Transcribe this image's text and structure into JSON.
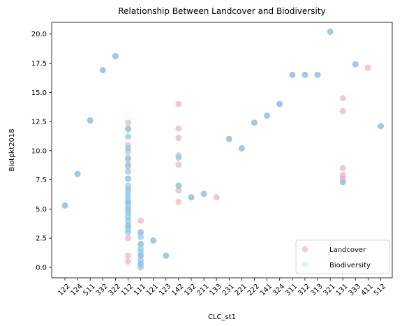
{
  "chart_data": {
    "type": "scatter",
    "title": "Relationship Between Landcover and Biodiversity",
    "xlabel": "CLC_st1",
    "ylabel": "Biotpkt2018",
    "categories": [
      "122",
      "124",
      "511",
      "332",
      "322",
      "112",
      "111",
      "121",
      "123",
      "142",
      "132",
      "211",
      "133",
      "231",
      "221",
      "222",
      "141",
      "324",
      "311",
      "312",
      "313",
      "321",
      "131",
      "333",
      "411",
      "512"
    ],
    "ylim": [
      -0.9,
      21.0
    ],
    "yticks": [
      "0.0",
      "2.5",
      "5.0",
      "7.5",
      "10.0",
      "12.5",
      "15.0",
      "17.5",
      "20.0"
    ],
    "ytick_values": [
      0,
      2.5,
      5,
      7.5,
      10,
      12.5,
      15,
      17.5,
      20
    ],
    "legend_position": "lower-right",
    "series": [
      {
        "name": "Landcover",
        "color": "#d98a9a",
        "points": [
          [
            "122",
            5.3
          ],
          [
            "124",
            8.0
          ],
          [
            "511",
            12.6
          ],
          [
            "332",
            16.9
          ],
          [
            "322",
            18.1
          ],
          [
            "112",
            12.4
          ],
          [
            "112",
            11.8
          ],
          [
            "112",
            10.5
          ],
          [
            "112",
            9.9
          ],
          [
            "112",
            9.2
          ],
          [
            "112",
            8.6
          ],
          [
            "112",
            7.6
          ],
          [
            "112",
            6.5
          ],
          [
            "112",
            5.6
          ],
          [
            "112",
            4.9
          ],
          [
            "112",
            3.6
          ],
          [
            "112",
            2.5
          ],
          [
            "112",
            1.0
          ],
          [
            "112",
            0.5
          ],
          [
            "111",
            4.0
          ],
          [
            "111",
            3.0
          ],
          [
            "111",
            2.0
          ],
          [
            "111",
            1.0
          ],
          [
            "111",
            0.3
          ],
          [
            "121",
            2.3
          ],
          [
            "123",
            1.0
          ],
          [
            "142",
            14.0
          ],
          [
            "142",
            11.9
          ],
          [
            "142",
            11.1
          ],
          [
            "142",
            9.6
          ],
          [
            "142",
            8.8
          ],
          [
            "142",
            7.0
          ],
          [
            "142",
            6.6
          ],
          [
            "142",
            5.6
          ],
          [
            "132",
            6.0
          ],
          [
            "211",
            6.3
          ],
          [
            "133",
            6.0
          ],
          [
            "231",
            11.0
          ],
          [
            "221",
            10.2
          ],
          [
            "222",
            12.4
          ],
          [
            "141",
            13.0
          ],
          [
            "324",
            14.0
          ],
          [
            "311",
            16.5
          ],
          [
            "312",
            16.5
          ],
          [
            "313",
            16.5
          ],
          [
            "321",
            20.2
          ],
          [
            "131",
            14.5
          ],
          [
            "131",
            13.4
          ],
          [
            "131",
            8.5
          ],
          [
            "131",
            7.9
          ],
          [
            "131",
            7.6
          ],
          [
            "131",
            7.3
          ],
          [
            "333",
            17.4
          ],
          [
            "411",
            17.1
          ],
          [
            "512",
            12.1
          ]
        ]
      },
      {
        "name": "Biodiversity",
        "color": "#87c6e8",
        "points": [
          [
            "122",
            5.3
          ],
          [
            "124",
            8.0
          ],
          [
            "511",
            12.6
          ],
          [
            "332",
            16.9
          ],
          [
            "322",
            18.1
          ],
          [
            "112",
            11.9
          ],
          [
            "112",
            11.2
          ],
          [
            "112",
            10.2
          ],
          [
            "112",
            9.4
          ],
          [
            "112",
            8.8
          ],
          [
            "112",
            8.2
          ],
          [
            "112",
            7.6
          ],
          [
            "112",
            7.0
          ],
          [
            "112",
            6.7
          ],
          [
            "112",
            6.2
          ],
          [
            "112",
            5.9
          ],
          [
            "112",
            5.6
          ],
          [
            "112",
            5.3
          ],
          [
            "112",
            5.0
          ],
          [
            "112",
            4.6
          ],
          [
            "112",
            4.3
          ],
          [
            "112",
            4.0
          ],
          [
            "112",
            3.6
          ],
          [
            "112",
            3.3
          ],
          [
            "112",
            3.0
          ],
          [
            "111",
            3.0
          ],
          [
            "111",
            2.6
          ],
          [
            "111",
            2.0
          ],
          [
            "111",
            1.6
          ],
          [
            "111",
            1.3
          ],
          [
            "111",
            1.0
          ],
          [
            "111",
            0.6
          ],
          [
            "111",
            0.3
          ],
          [
            "111",
            0.0
          ],
          [
            "121",
            2.3
          ],
          [
            "123",
            1.0
          ],
          [
            "142",
            9.4
          ],
          [
            "142",
            7.0
          ],
          [
            "132",
            6.0
          ],
          [
            "211",
            6.3
          ],
          [
            "231",
            11.0
          ],
          [
            "221",
            10.2
          ],
          [
            "222",
            12.4
          ],
          [
            "141",
            13.0
          ],
          [
            "324",
            14.0
          ],
          [
            "311",
            16.5
          ],
          [
            "312",
            16.5
          ],
          [
            "313",
            16.5
          ],
          [
            "321",
            20.2
          ],
          [
            "131",
            7.3
          ],
          [
            "333",
            17.4
          ],
          [
            "512",
            12.1
          ]
        ]
      }
    ]
  }
}
